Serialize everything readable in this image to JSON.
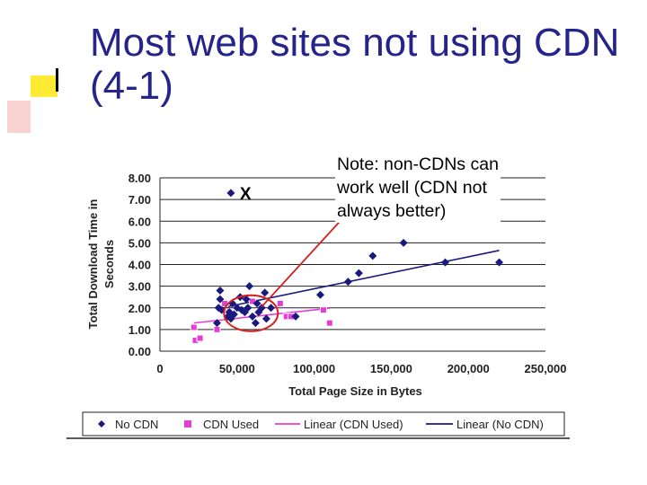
{
  "slide": {
    "title_line1": "Most web sites not using CDN",
    "title_line2": "(4-1)",
    "note_lines": [
      "Note:  non-CDNs can",
      "work well (CDN not",
      "always better)"
    ],
    "x_marker": "X"
  },
  "colors": {
    "title": "#24248a",
    "no_cdn": "#1a1a7e",
    "cdn_used": "#e53ed6",
    "circle": "#d42020",
    "arrow": "#d42020"
  },
  "chart_data": {
    "type": "scatter",
    "xlabel": "Total Page Size in Bytes",
    "ylabel": "Total Download Time in Seconds",
    "xlim": [
      0,
      250000
    ],
    "ylim": [
      0,
      8
    ],
    "x_ticks": [
      0,
      50000,
      100000,
      150000,
      200000,
      250000
    ],
    "x_tick_labels": [
      "0",
      "50,000",
      "100,000",
      "150,000",
      "200,000",
      "250,000"
    ],
    "y_ticks": [
      0,
      1,
      2,
      3,
      4,
      5,
      6,
      7,
      8
    ],
    "y_tick_labels": [
      "0.00",
      "1.00",
      "2.00",
      "3.00",
      "4.00",
      "5.00",
      "6.00",
      "7.00",
      "8.00"
    ],
    "grid": "horizontal",
    "legend_placement": "bottom",
    "series": [
      {
        "name": "No CDN",
        "marker": "diamond",
        "points": [
          [
            37000,
            1.3
          ],
          [
            38000,
            2.0
          ],
          [
            39000,
            2.8
          ],
          [
            39000,
            2.4
          ],
          [
            40000,
            1.9
          ],
          [
            44000,
            1.6
          ],
          [
            45000,
            1.8
          ],
          [
            46000,
            1.5
          ],
          [
            47000,
            2.2
          ],
          [
            48000,
            1.7
          ],
          [
            50000,
            2.0
          ],
          [
            52000,
            2.5
          ],
          [
            53000,
            1.9
          ],
          [
            55000,
            1.8
          ],
          [
            56000,
            2.4
          ],
          [
            57000,
            2.0
          ],
          [
            58000,
            3.0
          ],
          [
            60000,
            1.6
          ],
          [
            62000,
            1.3
          ],
          [
            63000,
            2.2
          ],
          [
            64000,
            1.8
          ],
          [
            66000,
            2.0
          ],
          [
            68000,
            2.7
          ],
          [
            69000,
            1.5
          ],
          [
            72000,
            2.0
          ],
          [
            88000,
            1.6
          ],
          [
            104000,
            2.6
          ],
          [
            122000,
            3.2
          ],
          [
            129000,
            3.6
          ],
          [
            138000,
            4.4
          ],
          [
            158000,
            5.0
          ],
          [
            185000,
            4.1
          ],
          [
            220000,
            4.1
          ],
          [
            46000,
            7.3
          ]
        ]
      },
      {
        "name": "CDN Used",
        "marker": "square",
        "points": [
          [
            22000,
            1.1
          ],
          [
            23000,
            0.5
          ],
          [
            26000,
            0.6
          ],
          [
            37000,
            1.0
          ],
          [
            42000,
            2.2
          ],
          [
            45000,
            1.8
          ],
          [
            60000,
            2.3
          ],
          [
            78000,
            2.2
          ],
          [
            82000,
            1.6
          ],
          [
            85000,
            1.6
          ],
          [
            106000,
            1.9
          ],
          [
            110000,
            1.3
          ]
        ]
      },
      {
        "name": "Linear (CDN Used)",
        "type": "line",
        "points": [
          [
            22000,
            1.3
          ],
          [
            110000,
            1.98
          ]
        ]
      },
      {
        "name": "Linear (No CDN)",
        "type": "line",
        "points": [
          [
            37000,
            1.95
          ],
          [
            220000,
            4.65
          ]
        ]
      }
    ]
  }
}
